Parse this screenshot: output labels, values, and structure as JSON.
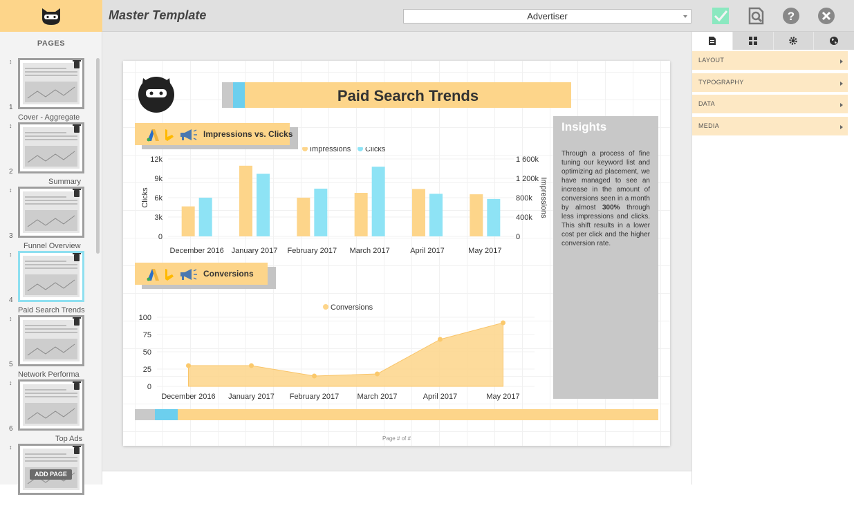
{
  "header": {
    "title": "Master Template",
    "advertiser": "Advertiser"
  },
  "pages_panel": {
    "title": "PAGES",
    "add_page_label": "ADD PAGE",
    "items": [
      {
        "number": "1",
        "label": "Cover - Aggregate"
      },
      {
        "number": "2",
        "label": "Summary"
      },
      {
        "number": "3",
        "label": "Funnel Overview"
      },
      {
        "number": "4",
        "label": "Paid Search Trends",
        "active": true
      },
      {
        "number": "5",
        "label": "Network Performa"
      },
      {
        "number": "6",
        "label": "Top Ads"
      },
      {
        "number": "",
        "label": ""
      }
    ]
  },
  "report": {
    "title": "Paid Search Trends",
    "section1_title": "Impressions vs. Clicks",
    "section2_title": "Conversions",
    "insights_title": "Insights",
    "insights_before": "Through a process of fine tuning our keyword list and optimizing ad placement, we have managed to see an increase in the amount of conversions seen in a month by almost ",
    "insights_bold": "300%",
    "insights_after": " through less impressions and clicks. This shift results in a lower cost per click and the higher conversion rate.",
    "page_footer": "Page # of #"
  },
  "right_panel": {
    "tabs": [
      "document-icon",
      "widgets-icon",
      "settings-icon",
      "globe-icon"
    ],
    "sections": [
      "LAYOUT",
      "TYPOGRAPHY",
      "DATA",
      "MEDIA"
    ]
  },
  "colors": {
    "accent_yellow": "#fdd58a",
    "accent_blue": "#8ee3f5",
    "gray": "#c8c8c8"
  },
  "chart_data": [
    {
      "type": "bar",
      "legend": [
        "Impressions",
        "Clicks"
      ],
      "legend_position": "top",
      "categories": [
        "December 2016",
        "January 2017",
        "February 2017",
        "March 2017",
        "April 2017",
        "May 2017"
      ],
      "series": [
        {
          "name": "Impressions",
          "axis": "right",
          "values": [
            620000,
            1460000,
            800000,
            900000,
            980000,
            870000
          ],
          "color": "#fdd58a"
        },
        {
          "name": "Clicks",
          "axis": "left",
          "values": [
            6000,
            9700,
            7400,
            10800,
            6600,
            5800
          ],
          "color": "#8ee3f5"
        }
      ],
      "ylabel": "Clicks",
      "y2label": "Impressions",
      "ylim": [
        0,
        12000
      ],
      "y2lim": [
        0,
        1600000
      ],
      "yticks": [
        "0",
        "3k",
        "6k",
        "9k",
        "12k"
      ],
      "y2ticks": [
        "0",
        "400k",
        "800k",
        "1 200k",
        "1 600k"
      ]
    },
    {
      "type": "area",
      "legend": [
        "Conversions"
      ],
      "legend_position": "top",
      "categories": [
        "December 2016",
        "January 2017",
        "February 2017",
        "March 2017",
        "April 2017",
        "May 2017"
      ],
      "series": [
        {
          "name": "Conversions",
          "values": [
            30,
            30,
            15,
            18,
            68,
            92
          ],
          "color": "#fdd58a"
        }
      ],
      "ylim": [
        0,
        100
      ],
      "yticks": [
        "0",
        "25",
        "50",
        "75",
        "100"
      ]
    }
  ]
}
